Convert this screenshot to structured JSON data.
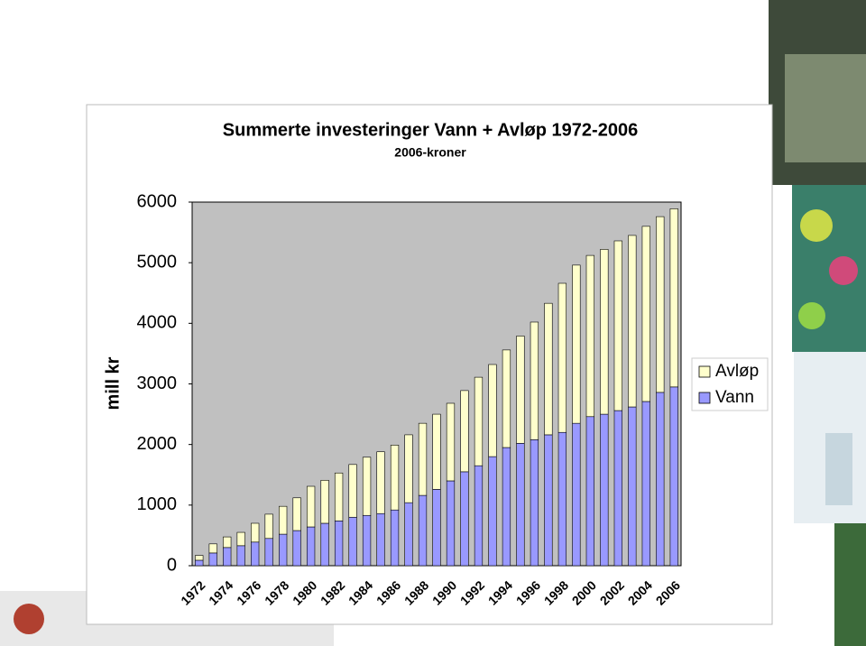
{
  "chart_data": {
    "type": "stacked_bar",
    "title": "Summerte investeringer Vann + Avløp 1972-2006",
    "subtitle": "2006-kroner",
    "y_label": "mill kr",
    "categories": [
      "1972",
      null,
      "1974",
      null,
      "1976",
      null,
      "1978",
      null,
      "1980",
      null,
      "1982",
      null,
      "1984",
      null,
      "1986",
      null,
      "1988",
      null,
      "1990",
      null,
      "1992",
      null,
      "1994",
      null,
      "1996",
      null,
      "1998",
      null,
      "2000",
      null,
      "2002",
      null,
      "2004",
      null,
      "2006"
    ],
    "series": [
      {
        "name": "Vann",
        "color": "#9999ff",
        "values": [
          90,
          210,
          300,
          330,
          390,
          450,
          520,
          580,
          640,
          700,
          740,
          800,
          830,
          860,
          920,
          1040,
          1160,
          1260,
          1400,
          1550,
          1650,
          1800,
          1950,
          2020,
          2080,
          2160,
          2200,
          2350,
          2460,
          2500,
          2560,
          2620,
          2710,
          2860,
          2950
        ]
      },
      {
        "name": "Avløp",
        "color": "#ffffcc",
        "values": [
          80,
          150,
          175,
          220,
          310,
          400,
          460,
          540,
          670,
          710,
          790,
          870,
          960,
          1020,
          1070,
          1120,
          1190,
          1240,
          1280,
          1340,
          1460,
          1520,
          1610,
          1770,
          1940,
          2170,
          2460,
          2610,
          2660,
          2720,
          2800,
          2830,
          2890,
          2900,
          2940
        ]
      }
    ],
    "ylim": [
      0,
      6000
    ],
    "yticks": [
      0,
      1000,
      2000,
      3000,
      4000,
      5000,
      6000
    ],
    "grid": false,
    "legend": "right",
    "plot_background": "#c0c0c0"
  }
}
